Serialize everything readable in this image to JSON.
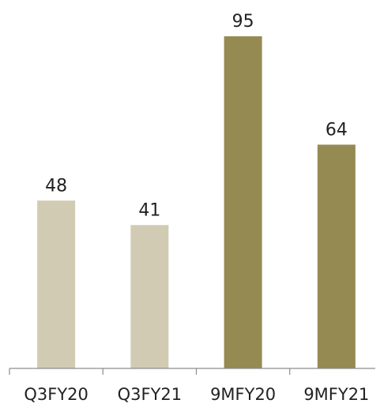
{
  "chart_data": {
    "type": "bar",
    "categories": [
      "Q3FY20",
      "Q3FY21",
      "9MFY20",
      "9MFY21"
    ],
    "values": [
      48,
      41,
      95,
      64
    ],
    "data_labels": [
      "48",
      "41",
      "95",
      "64"
    ],
    "bar_colors": [
      "#d0cbb2",
      "#d0cbb2",
      "#958a52",
      "#958a52"
    ],
    "axis_color": "#8c8c8c",
    "title": "",
    "xlabel": "",
    "ylabel": "",
    "ylim": [
      0,
      95
    ],
    "grid": false,
    "legend": "none"
  }
}
